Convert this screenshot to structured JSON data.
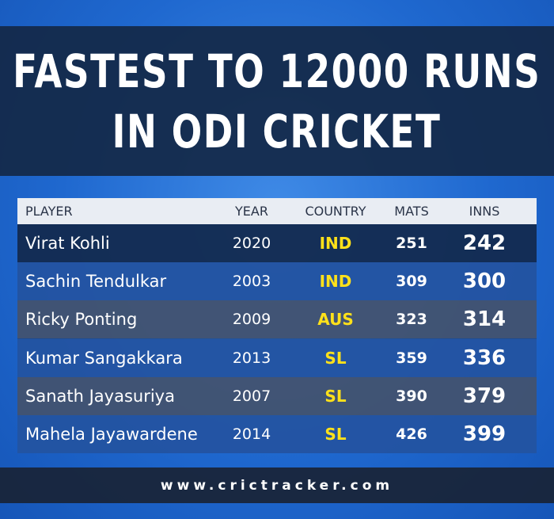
{
  "header": {
    "title_lines": [
      "FASTEST TO 12000 RUNS",
      "IN ODI CRICKET"
    ]
  },
  "table": {
    "columns": [
      "PLAYER",
      "YEAR",
      "COUNTRY",
      "MATS",
      "INNS"
    ],
    "rows": [
      [
        "Virat Kohli",
        "2020",
        "IND",
        "251",
        "242"
      ],
      [
        "Sachin Tendulkar",
        "2003",
        "IND",
        "309",
        "300"
      ],
      [
        "Ricky Ponting",
        "2009",
        "AUS",
        "323",
        "314"
      ],
      [
        "Kumar Sangakkara",
        "2013",
        "SL",
        "359",
        "336"
      ],
      [
        "Sanath Jayasuriya",
        "2007",
        "SL",
        "390",
        "379"
      ],
      [
        "Mahela Jayawardene",
        "2014",
        "SL",
        "426",
        "399"
      ]
    ]
  },
  "footer": {
    "website": "www.crictracker.com"
  }
}
